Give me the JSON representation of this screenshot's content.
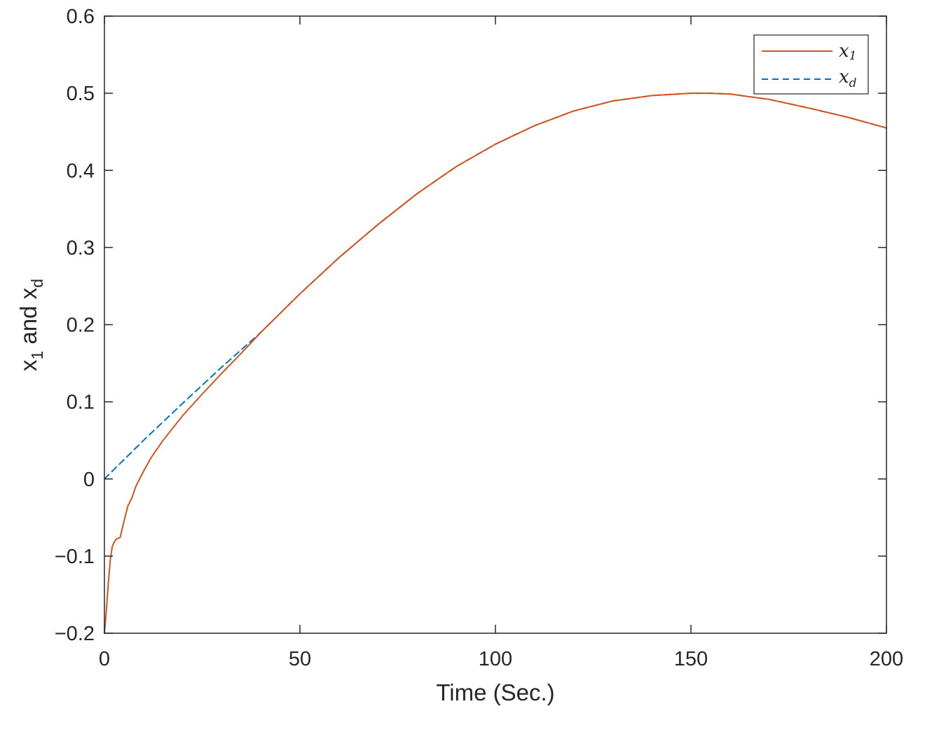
{
  "chart_data": {
    "type": "line",
    "xlabel": "Time (Sec.)",
    "ylabel_main_1": "x",
    "ylabel_sub_1": "1",
    "ylabel_main_2": " and x",
    "ylabel_sub_2": "d",
    "xlim": [
      0,
      200
    ],
    "ylim": [
      -0.2,
      0.6
    ],
    "xticks": [
      0,
      50,
      100,
      150,
      200
    ],
    "yticks": [
      -0.2,
      -0.1,
      0,
      0.1,
      0.2,
      0.3,
      0.4,
      0.5,
      0.6
    ],
    "xtick_labels": [
      "0",
      "50",
      "100",
      "150",
      "200"
    ],
    "ytick_labels": [
      "-0.2",
      "-0.1",
      "0",
      "0.1",
      "0.2",
      "0.3",
      "0.4",
      "0.5",
      "0.6"
    ],
    "grid": false,
    "legend_position": "top-right",
    "series": [
      {
        "name": "x_1",
        "legend_main": "x",
        "legend_sub": "1",
        "color": "#D95319",
        "style": "solid",
        "x": [
          0,
          0.5,
          1,
          1.5,
          2,
          2.5,
          3,
          4,
          5,
          6,
          7,
          8,
          10,
          12,
          15,
          20,
          25,
          30,
          35,
          40,
          50,
          60,
          70,
          80,
          90,
          100,
          110,
          120,
          130,
          140,
          150,
          155,
          160,
          170,
          180,
          190,
          200
        ],
        "y": [
          -0.2,
          -0.17,
          -0.135,
          -0.105,
          -0.088,
          -0.082,
          -0.078,
          -0.076,
          -0.055,
          -0.035,
          -0.025,
          -0.01,
          0.01,
          0.028,
          0.05,
          0.082,
          0.11,
          0.137,
          0.163,
          0.19,
          0.24,
          0.287,
          0.33,
          0.37,
          0.405,
          0.434,
          0.458,
          0.477,
          0.49,
          0.497,
          0.5,
          0.5,
          0.499,
          0.492,
          0.481,
          0.469,
          0.455
        ]
      },
      {
        "name": "x_d",
        "legend_main": "x",
        "legend_sub": "d",
        "color": "#0072BD",
        "style": "dashed",
        "x": [
          0,
          10,
          20,
          30,
          40,
          50,
          60,
          70,
          80,
          90,
          100,
          110,
          120,
          130,
          140,
          150,
          155,
          160,
          170,
          180,
          190,
          200
        ],
        "y": [
          0,
          0.05,
          0.098,
          0.145,
          0.19,
          0.24,
          0.287,
          0.33,
          0.37,
          0.405,
          0.434,
          0.458,
          0.477,
          0.49,
          0.497,
          0.5,
          0.5,
          0.499,
          0.492,
          0.481,
          0.469,
          0.455
        ]
      }
    ]
  }
}
